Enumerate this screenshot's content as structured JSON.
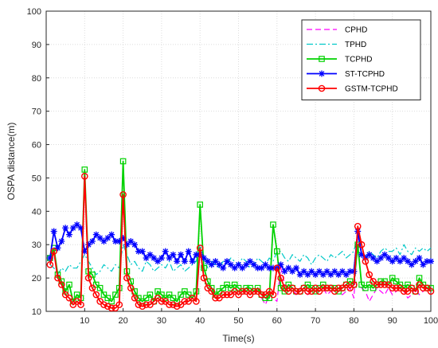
{
  "chart_data": {
    "type": "line",
    "title": "",
    "xlabel": "Time(s)",
    "ylabel": "OSPA distance(m)",
    "xlim": [
      0,
      100
    ],
    "ylim": [
      10,
      100
    ],
    "xticks": [
      10,
      20,
      30,
      40,
      50,
      60,
      70,
      80,
      90,
      100
    ],
    "yticks": [
      10,
      20,
      30,
      40,
      50,
      60,
      70,
      80,
      90,
      100
    ],
    "grid": true,
    "legend_position": "top-right",
    "series": [
      {
        "name": "CPHD",
        "color": "#ff00ff",
        "line_style": "dashed",
        "marker": "none",
        "x": [
          56,
          57,
          58,
          59,
          60,
          61,
          62,
          63,
          64,
          65,
          66,
          67,
          68,
          69,
          70,
          71,
          72,
          73,
          74,
          75,
          76,
          77,
          78,
          79,
          80,
          81,
          82,
          83,
          84,
          85,
          86,
          87,
          88,
          89,
          90,
          91,
          92,
          93,
          94,
          95,
          96,
          97,
          98,
          99,
          100
        ],
        "y": [
          14,
          12,
          15,
          14,
          13,
          23,
          18,
          16,
          17,
          15,
          17,
          16,
          15,
          17,
          16,
          16,
          17,
          15,
          16,
          17,
          16,
          15,
          16,
          17,
          14,
          32,
          17,
          16,
          13,
          15,
          17,
          16,
          15,
          17,
          15,
          16,
          17,
          16,
          14,
          15,
          17,
          15,
          16,
          17,
          16
        ]
      },
      {
        "name": "TPHD",
        "color": "#00c8c8",
        "line_style": "dashdot",
        "marker": "none",
        "x": [
          1,
          2,
          3,
          4,
          5,
          6,
          7,
          8,
          9,
          10,
          11,
          12,
          13,
          14,
          15,
          16,
          17,
          18,
          19,
          20,
          21,
          22,
          23,
          24,
          25,
          26,
          27,
          28,
          29,
          30,
          31,
          32,
          33,
          34,
          35,
          36,
          37,
          38,
          39,
          40,
          41,
          42,
          43,
          44,
          45,
          46,
          47,
          48,
          49,
          50,
          51,
          52,
          53,
          54,
          55,
          56,
          57,
          58,
          59,
          60,
          61,
          62,
          63,
          64,
          65,
          66,
          67,
          68,
          69,
          70,
          71,
          72,
          73,
          74,
          75,
          76,
          77,
          78,
          79,
          80,
          81,
          82,
          83,
          84,
          85,
          86,
          87,
          88,
          89,
          90,
          91,
          92,
          93,
          94,
          95,
          96,
          97,
          98,
          99,
          100
        ],
        "y": [
          24,
          23,
          21,
          23,
          22,
          24,
          23,
          23,
          25,
          27,
          25,
          23,
          21,
          22,
          24,
          23,
          22,
          24,
          23,
          30,
          27,
          24,
          25,
          23,
          22,
          25,
          24,
          22,
          23,
          24,
          23,
          25,
          22,
          23,
          24,
          22,
          23,
          24,
          25,
          30,
          26,
          23,
          25,
          24,
          23,
          25,
          24,
          26,
          25,
          24,
          26,
          25,
          23,
          24,
          26,
          25,
          24,
          26,
          25,
          28,
          28,
          26,
          25,
          27,
          26,
          25,
          27,
          26,
          24,
          26,
          27,
          26,
          25,
          27,
          26,
          27,
          28,
          26,
          27,
          28,
          33,
          27,
          26,
          28,
          27,
          26,
          28,
          29,
          28,
          28,
          29,
          27,
          30,
          28,
          27,
          29,
          28,
          29,
          28,
          29
        ]
      },
      {
        "name": "TCPHD",
        "color": "#00d200",
        "line_style": "solid",
        "marker": "square",
        "x": [
          1,
          2,
          3,
          4,
          5,
          6,
          7,
          8,
          9,
          10,
          11,
          12,
          13,
          14,
          15,
          16,
          17,
          18,
          19,
          20,
          21,
          22,
          23,
          24,
          25,
          26,
          27,
          28,
          29,
          30,
          31,
          32,
          33,
          34,
          35,
          36,
          37,
          38,
          39,
          40,
          41,
          42,
          43,
          44,
          45,
          46,
          47,
          48,
          49,
          50,
          51,
          52,
          53,
          54,
          55,
          56,
          57,
          58,
          59,
          60,
          61,
          62,
          63,
          64,
          65,
          66,
          67,
          68,
          69,
          70,
          71,
          72,
          73,
          74,
          75,
          76,
          77,
          78,
          79,
          80,
          81,
          82,
          83,
          84,
          85,
          86,
          87,
          88,
          89,
          90,
          91,
          92,
          93,
          94,
          95,
          96,
          97,
          98,
          99,
          100
        ],
        "y": [
          26,
          29,
          21,
          19,
          16,
          18,
          13,
          15,
          14,
          52.5,
          22,
          21,
          18,
          17,
          15,
          14,
          13,
          15,
          17,
          55,
          22,
          19,
          16,
          14,
          13,
          14,
          15,
          13,
          16,
          15,
          14,
          15,
          14,
          13,
          15,
          16,
          15,
          14,
          16,
          42,
          23,
          19,
          17,
          15,
          16,
          17,
          18,
          17,
          18,
          17,
          16,
          17,
          17,
          16,
          17,
          15,
          14,
          14,
          36,
          28,
          17,
          16,
          18,
          17,
          16,
          16,
          17,
          18,
          17,
          16,
          17,
          18,
          17,
          17,
          17,
          16,
          17,
          18,
          19,
          18,
          30,
          18,
          17,
          18,
          17,
          18,
          19,
          19,
          18,
          20,
          19,
          18,
          17,
          18,
          17,
          16,
          20,
          18,
          17,
          17
        ]
      },
      {
        "name": "ST-TCPHD",
        "color": "#0000ff",
        "line_style": "solid",
        "marker": "asterisk",
        "x": [
          1,
          2,
          3,
          4,
          5,
          6,
          7,
          8,
          9,
          10,
          11,
          12,
          13,
          14,
          15,
          16,
          17,
          18,
          19,
          20,
          21,
          22,
          23,
          24,
          25,
          26,
          27,
          28,
          29,
          30,
          31,
          32,
          33,
          34,
          35,
          36,
          37,
          38,
          39,
          40,
          41,
          42,
          43,
          44,
          45,
          46,
          47,
          48,
          49,
          50,
          51,
          52,
          53,
          54,
          55,
          56,
          57,
          58,
          59,
          60,
          61,
          62,
          63,
          64,
          65,
          66,
          67,
          68,
          69,
          70,
          71,
          72,
          73,
          74,
          75,
          76,
          77,
          78,
          79,
          80,
          81,
          82,
          83,
          84,
          85,
          86,
          87,
          88,
          89,
          90,
          91,
          92,
          93,
          94,
          95,
          96,
          97,
          98,
          99,
          100
        ],
        "y": [
          26,
          34,
          29,
          31,
          35,
          33,
          35,
          36,
          35,
          28,
          30,
          31,
          33,
          32,
          31,
          32,
          33,
          31,
          31,
          32,
          30,
          31,
          30,
          28,
          28,
          26,
          27,
          26,
          25,
          26,
          28,
          26,
          27,
          25,
          27,
          25,
          28,
          25,
          27,
          27,
          26,
          25,
          24,
          25,
          24,
          23,
          25,
          24,
          23,
          24,
          23,
          24,
          25,
          24,
          23,
          23,
          24,
          23,
          23,
          23,
          24,
          22,
          23,
          22,
          23,
          21,
          22,
          21,
          22,
          21,
          22,
          21,
          22,
          21,
          22,
          21,
          22,
          21,
          22,
          22,
          34,
          27,
          26,
          27,
          26,
          25,
          26,
          27,
          26,
          25,
          26,
          25,
          26,
          25,
          24,
          25,
          26,
          24,
          25,
          25
        ]
      },
      {
        "name": "GSTM-TCPHD",
        "color": "#ff0000",
        "line_style": "solid",
        "marker": "circle",
        "x": [
          1,
          2,
          3,
          4,
          5,
          6,
          7,
          8,
          9,
          10,
          11,
          12,
          13,
          14,
          15,
          16,
          17,
          18,
          19,
          20,
          21,
          22,
          23,
          24,
          25,
          26,
          27,
          28,
          29,
          30,
          31,
          32,
          33,
          34,
          35,
          36,
          37,
          38,
          39,
          40,
          41,
          42,
          43,
          44,
          45,
          46,
          47,
          48,
          49,
          50,
          51,
          52,
          53,
          54,
          55,
          56,
          57,
          58,
          59,
          60,
          61,
          62,
          63,
          64,
          65,
          66,
          67,
          68,
          69,
          70,
          71,
          72,
          73,
          74,
          75,
          76,
          77,
          78,
          79,
          80,
          81,
          82,
          83,
          84,
          85,
          86,
          87,
          88,
          89,
          90,
          91,
          92,
          93,
          94,
          95,
          96,
          97,
          98,
          99,
          100
        ],
        "y": [
          24,
          28,
          20,
          18,
          15,
          14,
          12,
          13,
          12,
          50.5,
          20,
          17,
          15,
          13,
          12,
          11.5,
          11,
          11,
          12,
          45,
          20,
          17,
          14,
          12,
          11.5,
          12,
          12,
          13,
          14,
          13,
          13,
          12,
          12,
          11.5,
          12,
          13,
          13,
          14,
          13,
          29,
          20,
          17,
          16,
          14,
          14,
          15,
          15,
          15,
          16,
          15,
          16,
          16,
          15,
          16,
          16,
          15,
          15,
          16,
          15,
          23,
          20,
          17,
          16,
          17,
          16,
          16,
          17,
          16,
          16,
          17,
          16,
          17,
          17,
          17,
          16,
          17,
          17,
          18,
          17,
          18,
          35.5,
          30,
          25,
          21,
          19,
          18,
          18,
          18,
          18,
          17,
          17,
          17,
          16,
          16,
          17,
          16,
          18,
          17,
          17,
          16
        ]
      }
    ]
  }
}
